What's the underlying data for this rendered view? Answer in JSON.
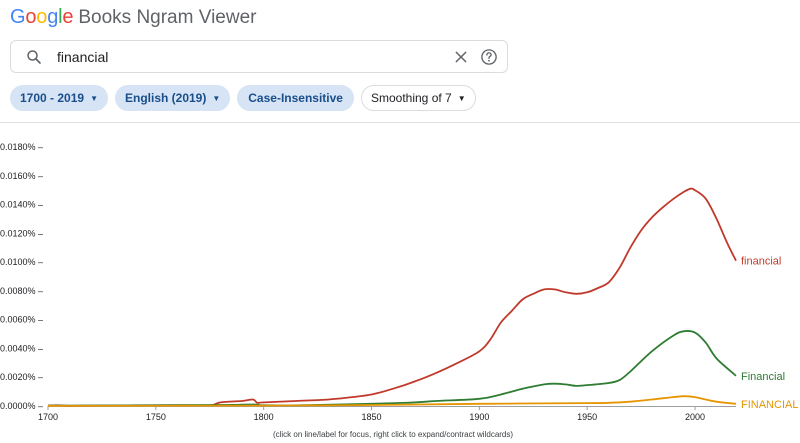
{
  "header": {
    "logo_letters": [
      {
        "char": "G",
        "color": "#4285F4"
      },
      {
        "char": "o",
        "color": "#EA4335"
      },
      {
        "char": "o",
        "color": "#FBBC05"
      },
      {
        "char": "g",
        "color": "#4285F4"
      },
      {
        "char": "l",
        "color": "#34A853"
      },
      {
        "char": "e",
        "color": "#EA4335"
      }
    ],
    "title_suffix": "Books Ngram Viewer"
  },
  "search": {
    "value": "financial",
    "icons": [
      "search-icon",
      "clear-icon",
      "help-icon"
    ]
  },
  "filters": {
    "year_range": "1700 - 2019",
    "corpus": "English (2019)",
    "case": "Case-Insensitive",
    "smoothing": "Smoothing of 7"
  },
  "chart_data": {
    "type": "line",
    "ylim": [
      0,
      0.018
    ],
    "xlim": [
      1700,
      2019
    ],
    "y_ticks": [
      "0.0000%",
      "0.0020%",
      "0.0040%",
      "0.0060%",
      "0.0080%",
      "0.0100%",
      "0.0120%",
      "0.0140%",
      "0.0160%",
      "0.0180%"
    ],
    "x_ticks": [
      "1700",
      "1750",
      "1800",
      "1850",
      "1900",
      "1950",
      "2000"
    ],
    "footnote": "(click on line/label for focus, right click to expand/contract wildcards)",
    "series": [
      {
        "name": "financial",
        "color": "#c0392b",
        "x": [
          1700,
          1705,
          1710,
          1720,
          1740,
          1760,
          1775,
          1780,
          1790,
          1795,
          1797,
          1800,
          1815,
          1830,
          1840,
          1850,
          1860,
          1870,
          1880,
          1890,
          1900,
          1905,
          1910,
          1915,
          1920,
          1925,
          1930,
          1935,
          1940,
          1945,
          1950,
          1955,
          1960,
          1965,
          1970,
          1975,
          1980,
          1985,
          1990,
          1995,
          1998,
          2000,
          2005,
          2010,
          2015,
          2019
        ],
        "y": [
          3e-05,
          5e-05,
          1e-05,
          3e-05,
          4e-05,
          5e-05,
          4e-05,
          0.00025,
          0.00035,
          0.00045,
          0.00023,
          0.00025,
          0.00035,
          0.00045,
          0.0006,
          0.0008,
          0.0012,
          0.0017,
          0.0023,
          0.003,
          0.0038,
          0.0046,
          0.0058,
          0.0066,
          0.0074,
          0.0078,
          0.0081,
          0.0081,
          0.0079,
          0.0078,
          0.0079,
          0.0082,
          0.0086,
          0.0096,
          0.011,
          0.0122,
          0.0131,
          0.0138,
          0.0144,
          0.0149,
          0.0151,
          0.015,
          0.0144,
          0.013,
          0.0113,
          0.0101
        ]
      },
      {
        "name": "Financial",
        "color": "#2e7d32",
        "x": [
          1700,
          1780,
          1790,
          1797,
          1800,
          1820,
          1850,
          1870,
          1880,
          1900,
          1910,
          1920,
          1930,
          1935,
          1940,
          1945,
          1950,
          1960,
          1965,
          1970,
          1980,
          1990,
          1995,
          2000,
          2005,
          2010,
          2019
        ],
        "y": [
          3e-05,
          7e-05,
          0.0001,
          0.0001,
          5e-05,
          6e-05,
          0.00015,
          0.00025,
          0.00035,
          0.0005,
          0.0008,
          0.0012,
          0.0015,
          0.00155,
          0.0015,
          0.0014,
          0.00145,
          0.0016,
          0.0018,
          0.0024,
          0.0038,
          0.0049,
          0.0052,
          0.0051,
          0.0044,
          0.0033,
          0.0021
        ]
      },
      {
        "name": "FINANCIAL",
        "color": "#e69500",
        "x": [
          1700,
          1800,
          1850,
          1900,
          1950,
          1960,
          1970,
          1980,
          1990,
          1995,
          2000,
          2005,
          2010,
          2019
        ],
        "y": [
          1e-05,
          3e-05,
          7e-05,
          0.00015,
          0.0002,
          0.00022,
          0.0003,
          0.00045,
          0.00062,
          0.00068,
          0.00062,
          0.00045,
          0.0003,
          0.00015
        ]
      }
    ]
  }
}
